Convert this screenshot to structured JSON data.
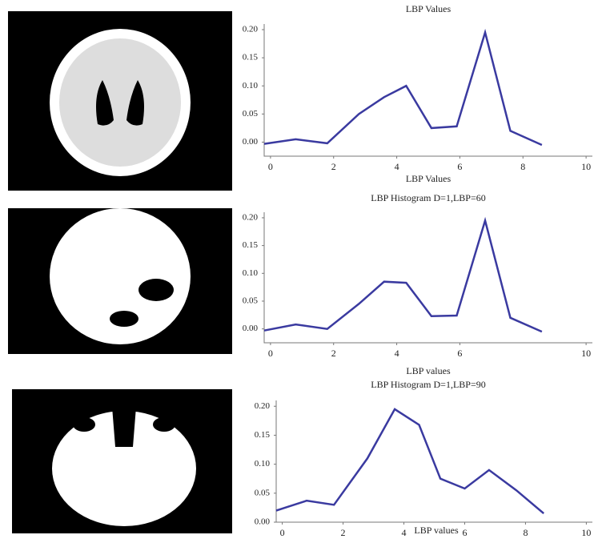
{
  "chart_data": [
    {
      "type": "line",
      "title": "LBP Values",
      "xlabel": "LBP Values",
      "x": [
        -0.2,
        0.8,
        1.8,
        2.8,
        3.6,
        4.3,
        5.1,
        5.9,
        6.8,
        7.6,
        8.6
      ],
      "values": [
        -0.003,
        0.005,
        -0.002,
        0.05,
        0.08,
        0.1,
        0.025,
        0.028,
        0.195,
        0.02,
        -0.005
      ],
      "color": "#3a3aa0",
      "xlim": [
        -0.2,
        10.2
      ],
      "ylim": [
        -0.025,
        0.21
      ],
      "xticks": [
        0,
        2,
        4,
        6,
        8,
        10
      ],
      "yticks": [
        {
          "value": 0,
          "label": "0.00"
        },
        {
          "value": 0.05,
          "label": "0.05"
        },
        {
          "value": 0.1,
          "label": "0.10"
        },
        {
          "value": 0.15,
          "label": "0.15"
        },
        {
          "value": 0.2,
          "label": "0.20"
        }
      ]
    },
    {
      "type": "line",
      "title": "LBP Histogram D=1,LBP=60",
      "xlabel": "LBP values",
      "x": [
        -0.2,
        0.8,
        1.8,
        2.8,
        3.6,
        4.3,
        5.1,
        5.9,
        6.8,
        7.6,
        8.6
      ],
      "values": [
        -0.003,
        0.008,
        0.0,
        0.045,
        0.085,
        0.083,
        0.023,
        0.024,
        0.195,
        0.02,
        -0.005
      ],
      "color": "#3a3aa0",
      "xlim": [
        -0.2,
        10.2
      ],
      "ylim": [
        -0.025,
        0.21
      ],
      "xticks": [
        0,
        2,
        4,
        6,
        10
      ],
      "yticks": [
        {
          "value": 0,
          "label": "0.00"
        },
        {
          "value": 0.05,
          "label": "0.05"
        },
        {
          "value": 0.1,
          "label": "0.10"
        },
        {
          "value": 0.15,
          "label": "0.15"
        },
        {
          "value": 0.2,
          "label": "0.20"
        }
      ]
    },
    {
      "type": "line",
      "title": "LBP Histogram D=1,LBP=90",
      "xlabel": "LBP values",
      "x": [
        -0.2,
        0.8,
        1.7,
        2.8,
        3.7,
        4.5,
        5.2,
        6.0,
        6.8,
        7.7,
        8.6
      ],
      "values": [
        0.02,
        0.037,
        0.03,
        0.11,
        0.195,
        0.168,
        0.075,
        0.058,
        0.09,
        0.055,
        0.015
      ],
      "color": "#3a3aa0",
      "xlim": [
        -0.2,
        10.2
      ],
      "ylim": [
        0,
        0.21
      ],
      "xticks": [
        0,
        2,
        4,
        6,
        8,
        10
      ],
      "yticks": [
        {
          "value": 0,
          "label": "0.00"
        },
        {
          "value": 0.05,
          "label": "0.05"
        },
        {
          "value": 0.1,
          "label": "0.10"
        },
        {
          "value": 0.15,
          "label": "0.15"
        },
        {
          "value": 0.2,
          "label": "0.20"
        }
      ]
    }
  ]
}
